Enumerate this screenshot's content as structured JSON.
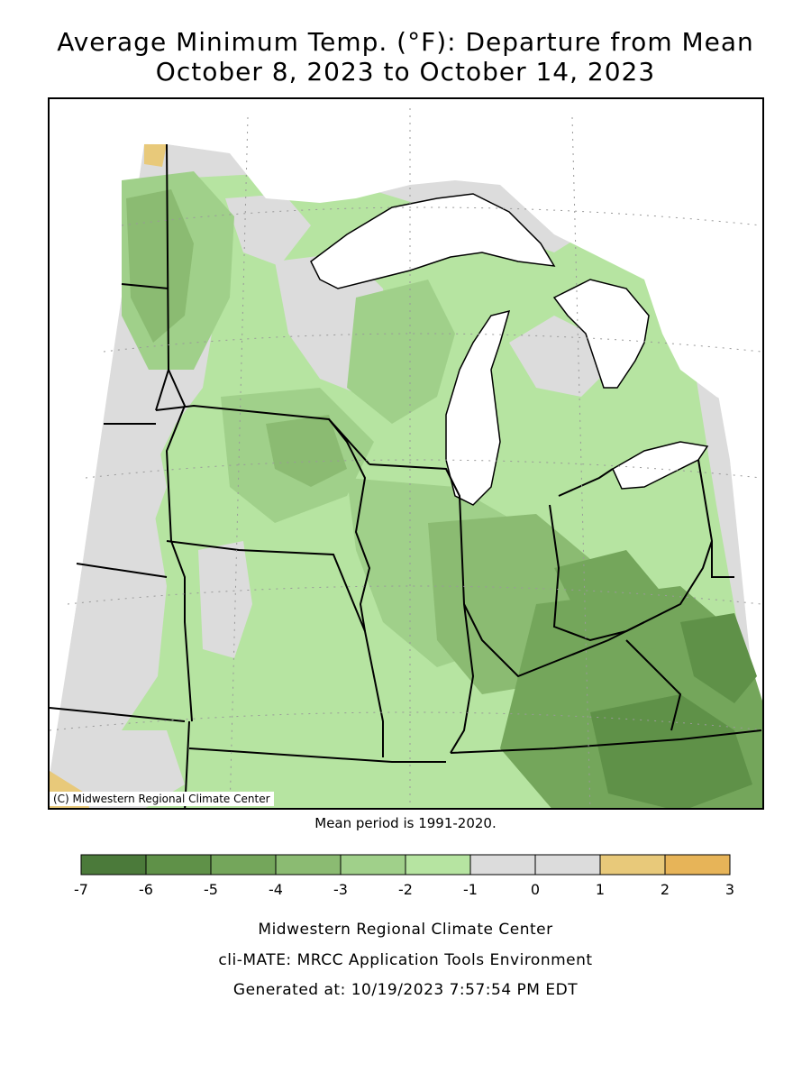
{
  "title": {
    "line1": "Average Minimum Temp. (°F): Departure from Mean",
    "line2": "October 8, 2023 to October 14, 2023"
  },
  "map": {
    "copyright": "(C) Midwestern Regional Climate Center",
    "water_color": "#ffffff",
    "border_color": "#000000"
  },
  "mean_period": "Mean period is 1991-2020.",
  "legend": {
    "bins": [
      {
        "range": [
          -7,
          -6
        ],
        "color": "#4b7a3a"
      },
      {
        "range": [
          -6,
          -5
        ],
        "color": "#5f9148"
      },
      {
        "range": [
          -5,
          -4
        ],
        "color": "#74a65b"
      },
      {
        "range": [
          -4,
          -3
        ],
        "color": "#8bbb72"
      },
      {
        "range": [
          -3,
          -2
        ],
        "color": "#a0d08a"
      },
      {
        "range": [
          -2,
          -1
        ],
        "color": "#b6e4a1"
      },
      {
        "range": [
          -1,
          0
        ],
        "color": "#dcdcdc"
      },
      {
        "range": [
          0,
          1
        ],
        "color": "#dcdcdc"
      },
      {
        "range": [
          1,
          2
        ],
        "color": "#e8c97a"
      },
      {
        "range": [
          2,
          3
        ],
        "color": "#e7b458"
      }
    ],
    "tick_labels": [
      "-7",
      "-6",
      "-5",
      "-4",
      "-3",
      "-2",
      "-1",
      "0",
      "1",
      "2",
      "3"
    ]
  },
  "footer": {
    "line1": "Midwestern Regional Climate Center",
    "line2": "cli-MATE: MRCC Application Tools Environment",
    "line3": "Generated at: 10/19/2023 7:57:54 PM EDT"
  }
}
